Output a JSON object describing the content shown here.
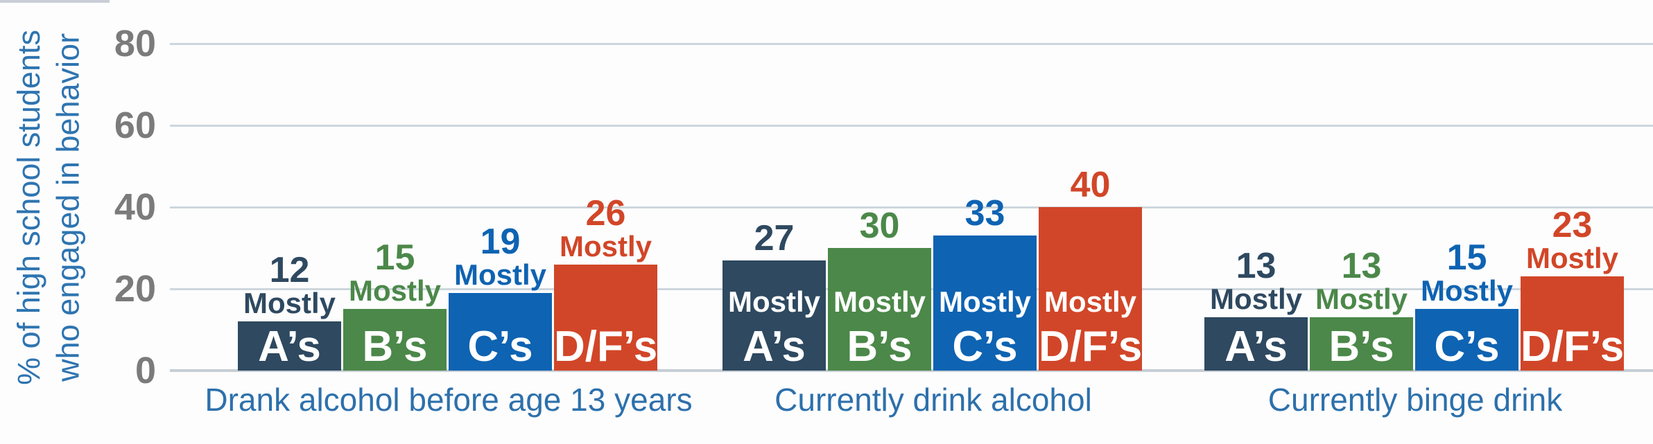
{
  "chart_data": {
    "type": "bar",
    "ylabel_lines": [
      "% of high school students",
      "who engaged in behavior"
    ],
    "yticks": [
      0,
      20,
      40,
      60,
      80
    ],
    "ylim": [
      0,
      80
    ],
    "grid": true,
    "legend_position": "none",
    "mostly_word": "Mostly",
    "categories": [
      "Drank alcohol before age 13 years",
      "Currently drink alcohol",
      "Currently binge drink"
    ],
    "series": [
      {
        "name": "Mostly A’s",
        "grade_label": "A’s",
        "color": "#2e4960",
        "values": [
          12,
          27,
          13
        ]
      },
      {
        "name": "Mostly B’s",
        "grade_label": "B’s",
        "color": "#4b8849",
        "values": [
          15,
          30,
          13
        ]
      },
      {
        "name": "Mostly C’s",
        "grade_label": "C’s",
        "color": "#0e63b2",
        "values": [
          19,
          33,
          15
        ]
      },
      {
        "name": "Mostly D/F’s",
        "grade_label": "D/F’s",
        "color": "#d14628",
        "values": [
          26,
          40,
          23
        ]
      }
    ]
  },
  "colors": {
    "gridline": "#cdd6dc",
    "baseline": "#c6ced4",
    "tick_label": "#7b7b7b",
    "category_label": "#2d70ab",
    "axis_title": "#2e74b0",
    "background": "#fdfdfe",
    "top_strip": "#c9cdd6"
  }
}
